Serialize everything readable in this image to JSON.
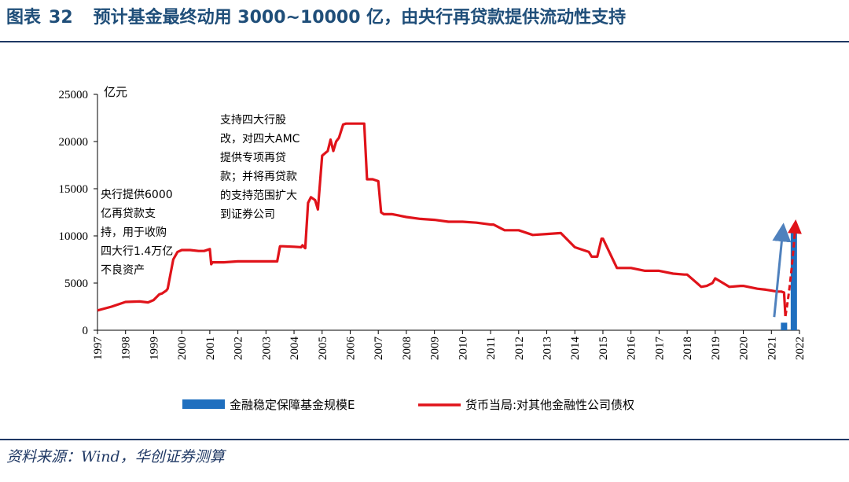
{
  "header": {
    "label": "图表",
    "number": "32",
    "title": "预计基金最终动用 3000~10000 亿，由央行再贷款提供流动性支持"
  },
  "source": "资料来源：Wind，华创证券测算",
  "colors": {
    "title": "#1f4e79",
    "bar": "#1f6fbf",
    "line": "#e0131a",
    "arrow_blue": "#4f81bd",
    "arrow_red": "#e0131a"
  },
  "chart_data": {
    "type": "line",
    "unit_label": "亿元",
    "ylim": [
      0,
      25000
    ],
    "yticks": [
      0,
      5000,
      10000,
      15000,
      20000,
      25000
    ],
    "xlim": [
      1997,
      2022
    ],
    "xticks": [
      1997,
      1998,
      1999,
      2000,
      2001,
      2002,
      2003,
      2004,
      2005,
      2006,
      2007,
      2008,
      2009,
      2010,
      2011,
      2012,
      2013,
      2014,
      2015,
      2016,
      2017,
      2018,
      2019,
      2020,
      2021,
      2022
    ],
    "series": [
      {
        "name": "货币当局:对其他金融性公司债权",
        "kind": "line",
        "x": [
          1997.0,
          1997.5,
          1998.0,
          1998.5,
          1998.8,
          1999.0,
          1999.2,
          1999.3,
          1999.45,
          1999.5,
          1999.7,
          1999.85,
          2000.0,
          2000.3,
          2000.6,
          2000.8,
          2001.0,
          2001.05,
          2001.1,
          2001.2,
          2001.5,
          2002.0,
          2002.5,
          2003.0,
          2003.4,
          2003.5,
          2003.6,
          2004.0,
          2004.25,
          2004.3,
          2004.4,
          2004.5,
          2004.6,
          2004.75,
          2004.85,
          2005.0,
          2005.2,
          2005.3,
          2005.4,
          2005.5,
          2005.6,
          2005.75,
          2005.85,
          2006.0,
          2006.2,
          2006.5,
          2006.6,
          2006.7,
          2006.8,
          2007.0,
          2007.1,
          2007.2,
          2007.5,
          2008.0,
          2008.5,
          2009.0,
          2009.5,
          2010.0,
          2010.5,
          2011.0,
          2011.1,
          2011.5,
          2012.0,
          2012.5,
          2013.0,
          2013.5,
          2014.0,
          2014.1,
          2014.5,
          2014.6,
          2014.8,
          2014.95,
          2015.0,
          2015.5,
          2016.0,
          2016.5,
          2017.0,
          2017.5,
          2017.9,
          2018.0,
          2018.5,
          2018.7,
          2018.9,
          2019.0,
          2019.5,
          2019.9,
          2020.0,
          2020.5,
          2020.8,
          2021.0,
          2021.2,
          2021.35,
          2021.45,
          2021.5
        ],
        "values": [
          2100,
          2500,
          3000,
          3050,
          2950,
          3200,
          3800,
          3900,
          4200,
          4400,
          7500,
          8300,
          8500,
          8500,
          8400,
          8400,
          8600,
          7000,
          7200,
          7200,
          7200,
          7300,
          7300,
          7300,
          7300,
          8900,
          8900,
          8850,
          8800,
          9000,
          8700,
          13500,
          14100,
          13800,
          12800,
          18500,
          19000,
          20200,
          19000,
          20000,
          20400,
          21800,
          21900,
          21900,
          21900,
          21900,
          16000,
          16000,
          16000,
          15800,
          12500,
          12300,
          12300,
          12000,
          11800,
          11700,
          11500,
          11500,
          11400,
          11200,
          11200,
          10600,
          10600,
          10100,
          10200,
          10300,
          8800,
          8700,
          8300,
          7800,
          7800,
          9700,
          9700,
          6600,
          6600,
          6300,
          6300,
          6000,
          5900,
          5900,
          4600,
          4700,
          5000,
          5500,
          4600,
          4700,
          4700,
          4400,
          4300,
          4200,
          4100,
          4100,
          4000,
          1500
        ]
      },
      {
        "name": "金融稳定保障基金规模E",
        "kind": "bar",
        "x": [
          2021.45,
          2021.8
        ],
        "values": [
          800,
          10800
        ]
      }
    ],
    "annotations": [
      {
        "lines": [
          "央行提供6000",
          "亿再贷款支",
          "持，用于收购",
          "四大行1.4万亿",
          "不良资产"
        ]
      },
      {
        "lines": [
          "支持四大行股",
          "改，对四大AMC",
          "提供专项再贷",
          "款；并将再贷款",
          "的支持范围扩大",
          "到证券公司"
        ]
      }
    ],
    "legend": {
      "position": "bottom-center",
      "items": [
        {
          "label": "金融稳定保障基金规模E",
          "kind": "bar"
        },
        {
          "label": "货币当局:对其他金融性公司债权",
          "kind": "line"
        }
      ]
    }
  }
}
